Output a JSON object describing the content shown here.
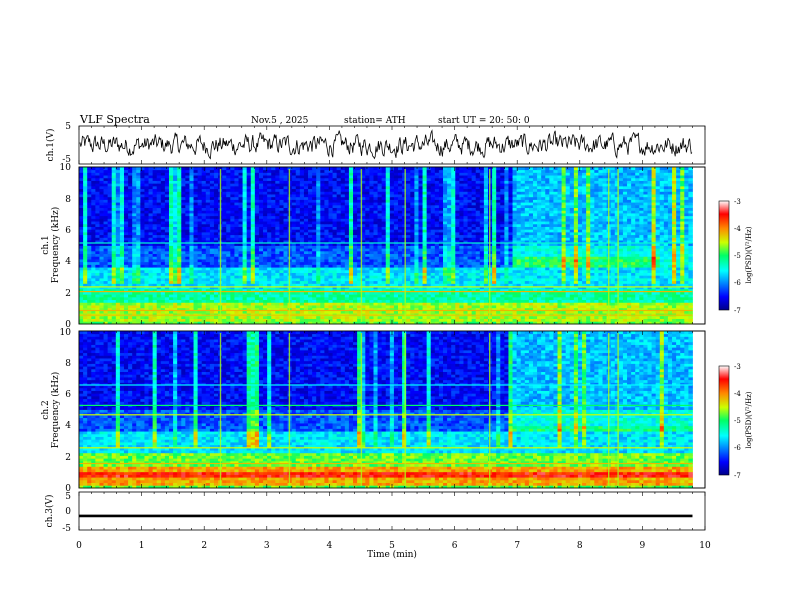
{
  "header": {
    "title": "VLF  Spectra",
    "date": "Nov.5  , 2025",
    "station": "station= ATH",
    "start": "start  UT  =    20: 50: 0"
  },
  "chart_data": [
    {
      "type": "line",
      "id": "ch1",
      "ylabel": "ch.1(V)",
      "ylim": [
        -5,
        5
      ],
      "yticks": [
        "5",
        "-5"
      ],
      "xlim": [
        0,
        10
      ]
    },
    {
      "type": "heatmap",
      "id": "spec1",
      "ylabel": "ch.1",
      "ylabel2": "Frequency  (kHz)",
      "ylim": [
        0,
        10
      ],
      "yticks": [
        "0",
        "2",
        "4",
        "6",
        "8",
        "10"
      ],
      "xlim": [
        0,
        10
      ],
      "data_end_min": 9.8,
      "change_min": 6.9,
      "colorbar": {
        "label": "log(PSD)(V²/Hz)",
        "range": [
          -7,
          -3
        ],
        "ticks": [
          "-3",
          "-4",
          "-5",
          "-6",
          "-7"
        ]
      }
    },
    {
      "type": "heatmap",
      "id": "spec2",
      "ylabel": "ch.2",
      "ylabel2": "Frequency  (kHz)",
      "ylim": [
        0,
        10
      ],
      "yticks": [
        "0",
        "2",
        "4",
        "6",
        "8",
        "10"
      ],
      "xlim": [
        0,
        10
      ],
      "data_end_min": 9.8,
      "change_min": 6.9,
      "colorbar": {
        "label": "log(PSD)(V²/Hz)",
        "range": [
          -7,
          -3
        ],
        "ticks": [
          "-3",
          "-4",
          "-5",
          "-6",
          "-7"
        ]
      }
    },
    {
      "type": "line",
      "id": "ch3",
      "ylabel": "ch.3(V)",
      "ylim": [
        -5,
        5
      ],
      "yticks": [
        "5",
        "0",
        "-5"
      ],
      "xlim": [
        0,
        10
      ],
      "value": -1.3,
      "xlabel": "Time  (min)",
      "xticks": [
        "0",
        "1",
        "2",
        "3",
        "4",
        "5",
        "6",
        "7",
        "8",
        "9",
        "10"
      ]
    }
  ]
}
